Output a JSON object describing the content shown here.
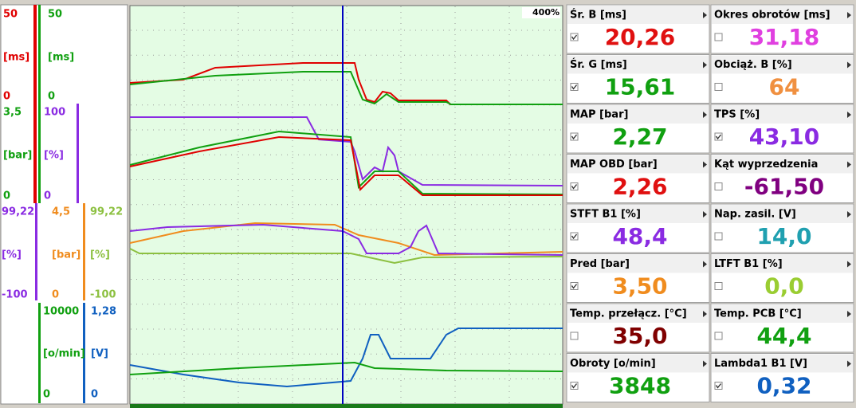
{
  "zoom": "400%",
  "scales": [
    [
      {
        "top": "50",
        "unit": "[ms]",
        "bottom": "0",
        "color": "#e00000"
      },
      {
        "top": "50",
        "unit": "[ms]",
        "bottom": "0",
        "color": "#10a010"
      }
    ],
    [
      {
        "top": "3,5",
        "unit": "[bar]",
        "bottom": "0",
        "color": "#10a010"
      },
      {
        "top": "100",
        "unit": "[%]",
        "bottom": "0",
        "color": "#8a2be2"
      }
    ],
    [
      {
        "top": "99,22",
        "unit": "[%]",
        "bottom": "-100",
        "color": "#8a2be2"
      },
      {
        "top": "4,5",
        "unit": "[bar]",
        "bottom": "0",
        "color": "#f08c1e"
      },
      {
        "top": "99,22",
        "unit": "[%]",
        "bottom": "-100",
        "color": "#8cc040"
      }
    ],
    [
      {
        "top": "10000",
        "unit": "[o/min]",
        "bottom": "0",
        "color": "#10a010"
      },
      {
        "top": "1,28",
        "unit": "[V]",
        "bottom": "0",
        "color": "#1060c0"
      }
    ]
  ],
  "panels": [
    {
      "label": "Śr. B  [ms]",
      "value": "20,26",
      "color": "#e01010",
      "checked": true
    },
    {
      "label": "Okres obrotów  [ms]",
      "value": "31,18",
      "color": "#e040e0",
      "checked": false
    },
    {
      "label": "Śr. G  [ms]",
      "value": "15,61",
      "color": "#10a010",
      "checked": true
    },
    {
      "label": "Obciąż. B  [%]",
      "value": "64",
      "color": "#f09040",
      "checked": false
    },
    {
      "label": "MAP  [bar]",
      "value": "2,27",
      "color": "#10a010",
      "checked": true
    },
    {
      "label": "TPS  [%]",
      "value": "43,10",
      "color": "#8a2be2",
      "checked": true
    },
    {
      "label": "MAP OBD  [bar]",
      "value": "2,26",
      "color": "#e01010",
      "checked": true
    },
    {
      "label": "Kąt wyprzedzenia",
      "value": "-61,50",
      "color": "#800080",
      "checked": false
    },
    {
      "label": "STFT B1  [%]",
      "value": "48,4",
      "color": "#8a2be2",
      "checked": true
    },
    {
      "label": "Nap. zasil.  [V]",
      "value": "14,0",
      "color": "#20a0b0",
      "checked": false
    },
    {
      "label": "Pred  [bar]",
      "value": "3,50",
      "color": "#f08c1e",
      "checked": true
    },
    {
      "label": "LTFT B1  [%]",
      "value": "0,0",
      "color": "#9acd32",
      "checked": false
    },
    {
      "label": "Temp. przełącz.  [°C]",
      "value": "35,0",
      "color": "#800000",
      "checked": false
    },
    {
      "label": "Temp. PCB  [°C]",
      "value": "44,4",
      "color": "#10a010",
      "checked": false
    },
    {
      "label": "Obroty  [o/min]",
      "value": "3848",
      "color": "#10a010",
      "checked": true
    },
    {
      "label": "Lambda1 B1  [V]",
      "value": "0,32",
      "color": "#1060c0",
      "checked": true
    }
  ]
}
